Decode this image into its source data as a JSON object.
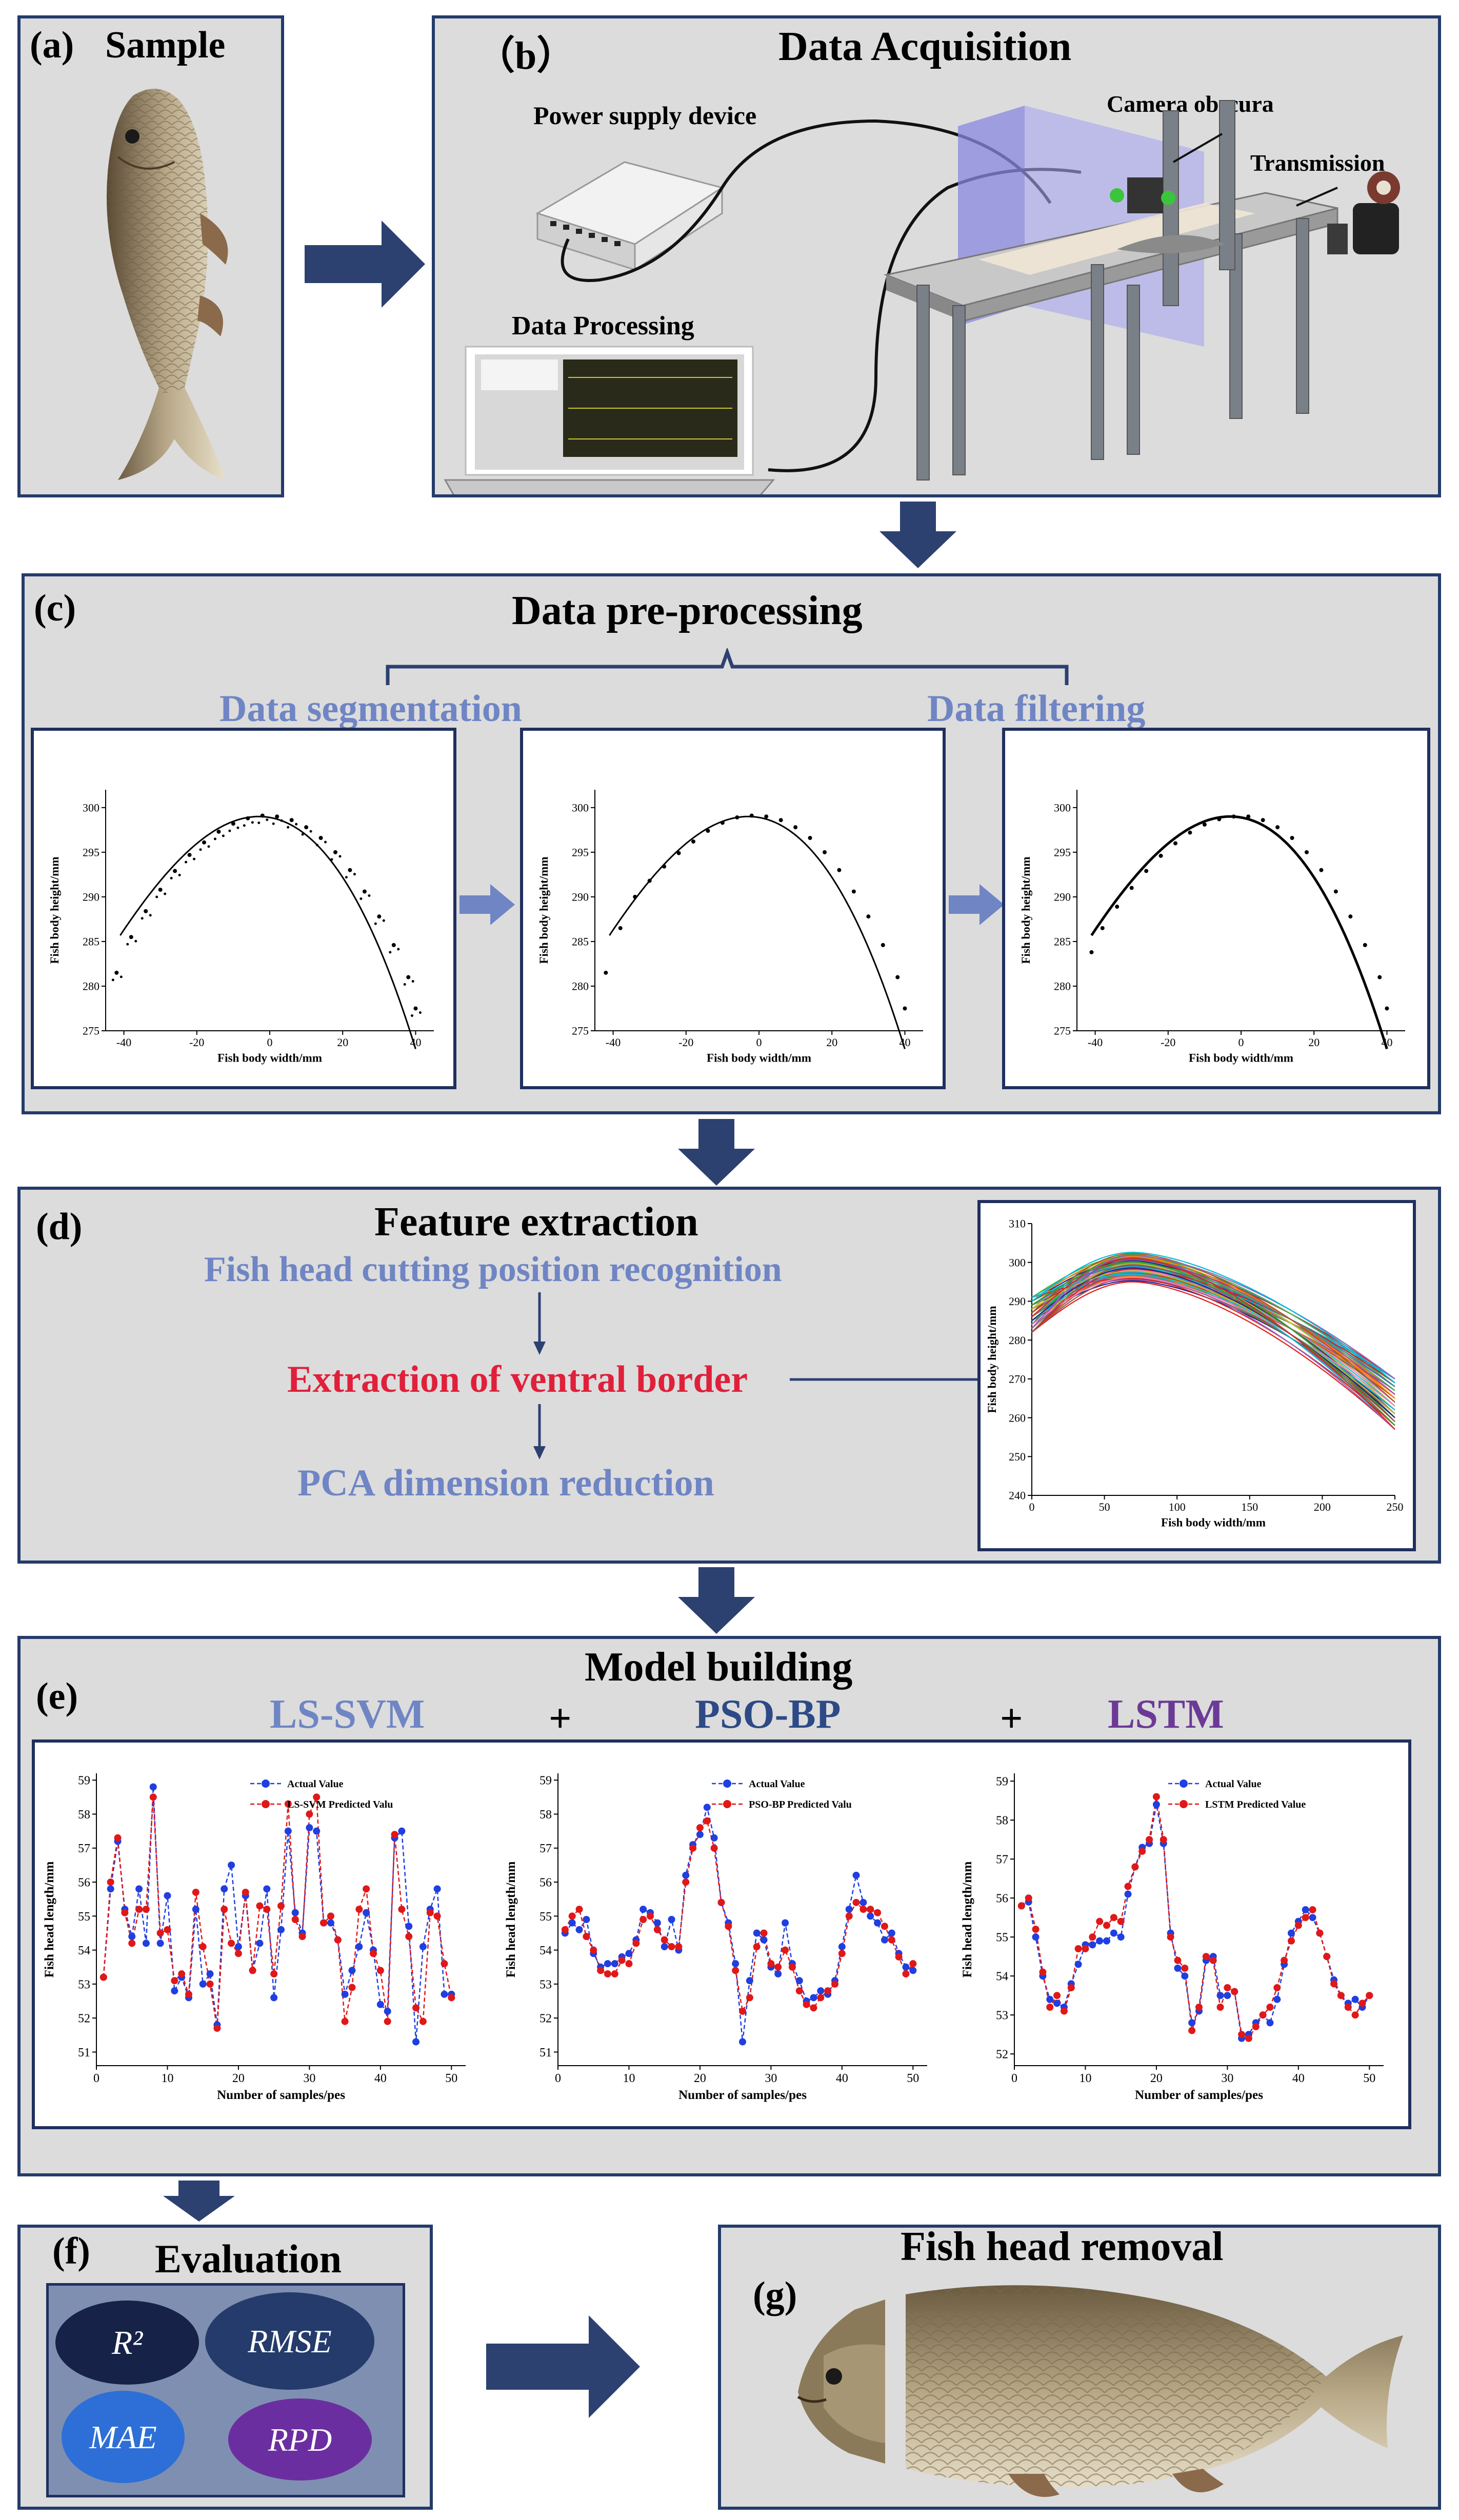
{
  "panels": {
    "a": {
      "label": "(a)",
      "title": "Sample"
    },
    "b": {
      "label": "（b）",
      "title": "Data Acquisition",
      "power": "Power supply device",
      "processing": "Data Processing",
      "camera": "Camera obscura",
      "transmission": "Transmission"
    },
    "c": {
      "label": "(c)",
      "title": "Data pre-processing",
      "segmentation": "Data segmentation",
      "filtering": "Data filtering"
    },
    "d": {
      "label": "(d)",
      "title": "Feature extraction",
      "step1": "Fish head cutting position recognition",
      "step2": "Extraction of ventral border",
      "step3": "PCA dimension reduction"
    },
    "e": {
      "label": "(e)",
      "title": "Model building",
      "m1": "LS-SVM",
      "m2": "PSO-BP",
      "m3": "LSTM",
      "plus": "+"
    },
    "f": {
      "label": "(f)",
      "title": "Evaluation",
      "metrics": [
        "R²",
        "RMSE",
        "MAE",
        "RPD"
      ]
    },
    "g": {
      "label": "(g)",
      "title": "Fish head removal"
    }
  },
  "colors": {
    "panel_bg": "#dcdcdc",
    "border": "#243b6b",
    "arrow": "#2c4170",
    "label_blue": "#6f85c4",
    "red": "#e0203a",
    "pso_blue": "#2d4a86",
    "lstm_purple": "#6b3a96",
    "point_blue": "#1f3fe0",
    "point_red": "#e01818"
  },
  "chart_data": [
    {
      "id": "c1",
      "type": "scatter",
      "title": "",
      "xlabel": "Fish body width/mm",
      "ylabel": "Fish body height/mm",
      "xlim": [
        -45,
        45
      ],
      "ylim": [
        275,
        302
      ],
      "xticks": [
        -40,
        -20,
        0,
        20,
        40
      ],
      "yticks": [
        275,
        280,
        285,
        290,
        295,
        300
      ],
      "series": [
        {
          "name": "raw point cloud",
          "x": [
            -42,
            -38,
            -34,
            -30,
            -26,
            -22,
            -18,
            -14,
            -10,
            -6,
            -2,
            2,
            6,
            10,
            14,
            18,
            22,
            26,
            30,
            34,
            38,
            40
          ],
          "y": [
            281.5,
            285.5,
            288.4,
            290.8,
            292.9,
            294.7,
            296.1,
            297.3,
            298.2,
            298.8,
            299.1,
            299.0,
            298.6,
            297.8,
            296.6,
            295.0,
            293.0,
            290.6,
            287.8,
            284.6,
            281.0,
            277.5
          ]
        }
      ]
    },
    {
      "id": "c2",
      "type": "scatter",
      "title": "",
      "xlabel": "Fish body width/mm",
      "ylabel": "Fish body height/mm",
      "xlim": [
        -45,
        45
      ],
      "ylim": [
        275,
        302
      ],
      "xticks": [
        -40,
        -20,
        0,
        20,
        40
      ],
      "yticks": [
        275,
        280,
        285,
        290,
        295,
        300
      ],
      "series": [
        {
          "name": "segmented",
          "x": [
            -42,
            -38,
            -34,
            -30,
            -26,
            -22,
            -18,
            -14,
            -10,
            -6,
            -2,
            2,
            6,
            10,
            14,
            18,
            22,
            26,
            30,
            34,
            38,
            40
          ],
          "y": [
            281.5,
            286.5,
            290.0,
            291.8,
            293.4,
            294.9,
            296.2,
            297.4,
            298.3,
            298.9,
            299.1,
            299.0,
            298.6,
            297.8,
            296.6,
            295.0,
            293.0,
            290.6,
            287.8,
            284.6,
            281.0,
            277.5
          ]
        }
      ]
    },
    {
      "id": "c3",
      "type": "scatter",
      "title": "",
      "xlabel": "Fish body width/mm",
      "ylabel": "Fish body height/mm",
      "xlim": [
        -45,
        45
      ],
      "ylim": [
        275,
        302
      ],
      "xticks": [
        -40,
        -20,
        0,
        20,
        40
      ],
      "yticks": [
        275,
        280,
        285,
        290,
        295,
        300
      ],
      "series": [
        {
          "name": "filtered",
          "x": [
            -41,
            -38,
            -34,
            -30,
            -26,
            -22,
            -18,
            -14,
            -10,
            -6,
            -2,
            2,
            6,
            10,
            14,
            18,
            22,
            26,
            30,
            34,
            38,
            40
          ],
          "y": [
            283.8,
            286.5,
            288.9,
            291.0,
            292.9,
            294.6,
            296.0,
            297.2,
            298.1,
            298.7,
            299.0,
            299.0,
            298.6,
            297.8,
            296.6,
            295.0,
            293.0,
            290.6,
            287.8,
            284.6,
            281.0,
            277.5
          ]
        }
      ]
    },
    {
      "id": "d1",
      "type": "line",
      "title": "",
      "xlabel": "Fish body width/mm",
      "ylabel": "Fish body height/mm",
      "xlim": [
        0,
        250
      ],
      "ylim": [
        240,
        310
      ],
      "xticks": [
        0,
        50,
        100,
        150,
        200,
        250
      ],
      "yticks": [
        240,
        250,
        260,
        270,
        280,
        290,
        300,
        310
      ],
      "series_description": "about 45 overlapping ventral-border curves, peak near x≈70 (y≈295–302), falling to y≈257–270 at x=250"
    },
    {
      "id": "e1",
      "type": "line",
      "title": "",
      "xlabel": "Number of samples/pes",
      "ylabel": "Fish head length/mm",
      "xlim": [
        0,
        52
      ],
      "ylim": [
        50.6,
        59.2
      ],
      "xticks": [
        0,
        10,
        20,
        30,
        40,
        50
      ],
      "yticks": [
        51,
        52,
        53,
        54,
        55,
        56,
        57,
        58,
        59
      ],
      "legend": [
        "Actual Value",
        "LS-SVM Predicted Valu"
      ],
      "series": [
        {
          "name": "Actual Value",
          "x": [
            1,
            2,
            3,
            4,
            5,
            6,
            7,
            8,
            9,
            10,
            11,
            12,
            13,
            14,
            15,
            16,
            17,
            18,
            19,
            20,
            21,
            22,
            23,
            24,
            25,
            26,
            27,
            28,
            29,
            30,
            31,
            32,
            33,
            34,
            35,
            36,
            37,
            38,
            39,
            40,
            41,
            42,
            43,
            44,
            45,
            46,
            47,
            48,
            49,
            50
          ],
          "y": [
            53.2,
            55.8,
            57.2,
            55.2,
            54.4,
            55.8,
            54.2,
            58.8,
            54.2,
            55.6,
            52.8,
            53.2,
            52.6,
            55.2,
            53.0,
            53.3,
            51.8,
            55.8,
            56.5,
            54.1,
            55.6,
            53.4,
            54.2,
            55.8,
            52.6,
            54.6,
            57.5,
            55.1,
            54.5,
            57.6,
            57.5,
            54.8,
            54.8,
            54.3,
            52.7,
            53.4,
            54.1,
            55.1,
            54.0,
            52.4,
            52.2,
            57.3,
            57.5,
            54.7,
            51.3,
            54.1,
            55.2,
            55.8,
            52.7,
            52.7
          ]
        },
        {
          "name": "LS-SVM Predicted Value",
          "x": [
            1,
            2,
            3,
            4,
            5,
            6,
            7,
            8,
            9,
            10,
            11,
            12,
            13,
            14,
            15,
            16,
            17,
            18,
            19,
            20,
            21,
            22,
            23,
            24,
            25,
            26,
            27,
            28,
            29,
            30,
            31,
            32,
            33,
            34,
            35,
            36,
            37,
            38,
            39,
            40,
            41,
            42,
            43,
            44,
            45,
            46,
            47,
            48,
            49,
            50
          ],
          "y": [
            53.2,
            56.0,
            57.3,
            55.1,
            54.2,
            55.2,
            55.2,
            58.5,
            54.5,
            54.6,
            53.1,
            53.3,
            52.7,
            55.7,
            54.1,
            53.0,
            51.7,
            55.2,
            54.2,
            53.9,
            55.7,
            53.4,
            55.3,
            55.2,
            53.3,
            55.3,
            58.3,
            54.9,
            54.4,
            58.0,
            58.5,
            54.8,
            55.0,
            54.3,
            51.9,
            52.9,
            55.2,
            55.8,
            53.9,
            53.4,
            51.9,
            57.4,
            55.2,
            54.4,
            52.3,
            51.9,
            55.1,
            55.0,
            53.6,
            52.6
          ]
        }
      ]
    },
    {
      "id": "e2",
      "type": "line",
      "title": "",
      "xlabel": "Number of samples/pes",
      "ylabel": "Fish head length/mm",
      "xlim": [
        0,
        52
      ],
      "ylim": [
        50.6,
        59.2
      ],
      "xticks": [
        0,
        10,
        20,
        30,
        40,
        50
      ],
      "yticks": [
        51,
        52,
        53,
        54,
        55,
        56,
        57,
        58,
        59
      ],
      "legend": [
        "Actual Value",
        "PSO-BP Predicted Valu"
      ],
      "series": [
        {
          "name": "Actual Value",
          "x": [
            1,
            2,
            3,
            4,
            5,
            6,
            7,
            8,
            9,
            10,
            11,
            12,
            13,
            14,
            15,
            16,
            17,
            18,
            19,
            20,
            21,
            22,
            23,
            24,
            25,
            26,
            27,
            28,
            29,
            30,
            31,
            32,
            33,
            34,
            35,
            36,
            37,
            38,
            39,
            40,
            41,
            42,
            43,
            44,
            45,
            46,
            47,
            48,
            49,
            50
          ],
          "y": [
            54.5,
            54.8,
            54.6,
            54.9,
            53.9,
            53.5,
            53.6,
            53.6,
            53.8,
            53.9,
            54.3,
            55.2,
            55.1,
            54.8,
            54.1,
            54.9,
            54.0,
            56.2,
            57.1,
            57.4,
            58.2,
            57.3,
            55.4,
            54.8,
            53.6,
            51.3,
            53.1,
            54.5,
            54.3,
            53.5,
            53.3,
            54.8,
            53.6,
            53.1,
            52.5,
            52.6,
            52.8,
            52.7,
            53.1,
            54.1,
            55.2,
            56.2,
            55.4,
            55.0,
            54.8,
            54.3,
            54.5,
            53.9,
            53.5,
            53.4
          ]
        },
        {
          "name": "PSO-BP Predicted Value",
          "x": [
            1,
            2,
            3,
            4,
            5,
            6,
            7,
            8,
            9,
            10,
            11,
            12,
            13,
            14,
            15,
            16,
            17,
            18,
            19,
            20,
            21,
            22,
            23,
            24,
            25,
            26,
            27,
            28,
            29,
            30,
            31,
            32,
            33,
            34,
            35,
            36,
            37,
            38,
            39,
            40,
            41,
            42,
            43,
            44,
            45,
            46,
            47,
            48,
            49,
            50
          ],
          "y": [
            54.6,
            55.0,
            55.2,
            54.4,
            54.0,
            53.4,
            53.3,
            53.3,
            53.7,
            53.6,
            54.2,
            54.9,
            55.0,
            54.6,
            54.3,
            54.1,
            54.1,
            56.0,
            57.0,
            57.6,
            57.8,
            57.0,
            55.4,
            54.7,
            53.4,
            52.2,
            52.6,
            54.1,
            54.5,
            53.6,
            53.5,
            54.0,
            53.5,
            52.8,
            52.4,
            52.3,
            52.6,
            52.8,
            53.0,
            53.9,
            55.0,
            55.4,
            55.2,
            55.2,
            55.1,
            54.7,
            54.3,
            53.8,
            53.3,
            53.6
          ]
        }
      ]
    },
    {
      "id": "e3",
      "type": "line",
      "title": "",
      "xlabel": "Number of samples/pes",
      "ylabel": "Fish head length/mm",
      "xlim": [
        0,
        52
      ],
      "ylim": [
        51.7,
        59.2
      ],
      "xticks": [
        0,
        10,
        20,
        30,
        40,
        50
      ],
      "yticks": [
        52,
        53,
        54,
        55,
        56,
        57,
        58,
        59
      ],
      "legend": [
        "Actual Value",
        "LSTM Predicted Value"
      ],
      "series": [
        {
          "name": "Actual Value",
          "x": [
            1,
            2,
            3,
            4,
            5,
            6,
            7,
            8,
            9,
            10,
            11,
            12,
            13,
            14,
            15,
            16,
            17,
            18,
            19,
            20,
            21,
            22,
            23,
            24,
            25,
            26,
            27,
            28,
            29,
            30,
            31,
            32,
            33,
            34,
            35,
            36,
            37,
            38,
            39,
            40,
            41,
            42,
            43,
            44,
            45,
            46,
            47,
            48,
            49,
            50
          ],
          "y": [
            55.8,
            55.9,
            55.0,
            54.0,
            53.4,
            53.3,
            53.2,
            53.8,
            54.3,
            54.8,
            54.8,
            54.9,
            54.9,
            55.1,
            55.0,
            56.1,
            56.8,
            57.3,
            57.4,
            58.4,
            57.4,
            55.1,
            54.2,
            54.0,
            52.8,
            53.1,
            54.4,
            54.5,
            53.5,
            53.5,
            53.6,
            52.4,
            52.5,
            52.8,
            53.0,
            52.8,
            53.4,
            54.3,
            55.1,
            55.4,
            55.7,
            55.5,
            55.1,
            54.5,
            53.9,
            53.5,
            53.3,
            53.4,
            53.2,
            53.5
          ]
        },
        {
          "name": "LSTM Predicted Value",
          "x": [
            1,
            2,
            3,
            4,
            5,
            6,
            7,
            8,
            9,
            10,
            11,
            12,
            13,
            14,
            15,
            16,
            17,
            18,
            19,
            20,
            21,
            22,
            23,
            24,
            25,
            26,
            27,
            28,
            29,
            30,
            31,
            32,
            33,
            34,
            35,
            36,
            37,
            38,
            39,
            40,
            41,
            42,
            43,
            44,
            45,
            46,
            47,
            48,
            49,
            50
          ],
          "y": [
            55.8,
            56.0,
            55.2,
            54.1,
            53.2,
            53.5,
            53.1,
            53.7,
            54.7,
            54.7,
            55.0,
            55.4,
            55.3,
            55.5,
            55.4,
            56.3,
            56.8,
            57.2,
            57.5,
            58.6,
            57.5,
            55.0,
            54.4,
            54.2,
            52.6,
            53.2,
            54.5,
            54.4,
            53.2,
            53.7,
            53.6,
            52.5,
            52.4,
            52.7,
            53.0,
            53.2,
            53.7,
            54.4,
            54.9,
            55.3,
            55.5,
            55.7,
            55.1,
            54.5,
            53.8,
            53.5,
            53.2,
            53.0,
            53.3,
            53.5
          ]
        }
      ]
    }
  ]
}
